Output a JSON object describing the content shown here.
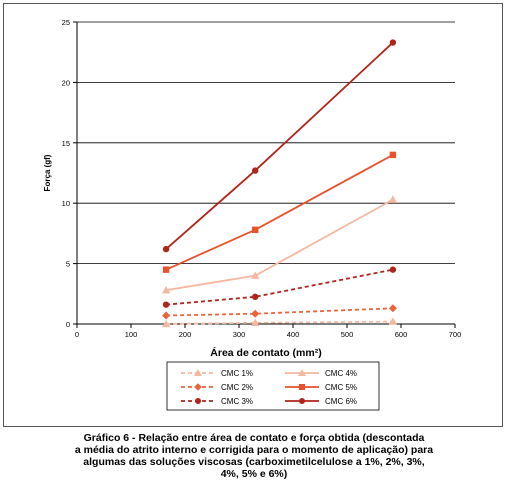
{
  "chart_data": {
    "type": "line",
    "xlabel": "Área de contato (mm²)",
    "ylabel": "Força (gf)",
    "xlim": [
      0,
      700
    ],
    "ylim": [
      0,
      25
    ],
    "xticks": [
      "0",
      "100",
      "200",
      "300",
      "400",
      "500",
      "600",
      "700"
    ],
    "yticks": [
      "0",
      "5",
      "10",
      "15",
      "20",
      "25"
    ],
    "grid": "horizontal",
    "legend_position": "bottom",
    "x": [
      165,
      330,
      585
    ],
    "series": [
      {
        "name": "CMC 1%",
        "values": [
          0.0,
          0.1,
          0.2
        ],
        "color": "#f4b8a0",
        "line": "dashed",
        "marker": "triangle"
      },
      {
        "name": "CMC 2%",
        "values": [
          0.7,
          0.85,
          1.3
        ],
        "color": "#e8653a",
        "line": "dashed",
        "marker": "diamond"
      },
      {
        "name": "CMC 3%",
        "values": [
          1.6,
          2.25,
          4.5
        ],
        "color": "#b0241a",
        "line": "dashed",
        "marker": "circle"
      },
      {
        "name": "CMC 4%",
        "values": [
          2.8,
          4.0,
          10.3
        ],
        "color": "#f4b8a0",
        "line": "solid",
        "marker": "triangle"
      },
      {
        "name": "CMC 5%",
        "values": [
          4.5,
          7.8,
          14.0
        ],
        "color": "#e8512a",
        "line": "solid",
        "marker": "square"
      },
      {
        "name": "CMC 6%",
        "values": [
          6.2,
          12.7,
          23.3
        ],
        "color": "#b0241a",
        "line": "solid",
        "marker": "circle"
      }
    ]
  },
  "caption": [
    "Gráfico 6 - Relação entre área de contato e força obtida (descontada",
    "a média do atrito interno e corrigida para o momento de aplicação) para",
    "algumas das soluções viscosas (carboximetilcelulose a 1%, 2%, 3%,",
    "4%, 5% e 6%)"
  ]
}
